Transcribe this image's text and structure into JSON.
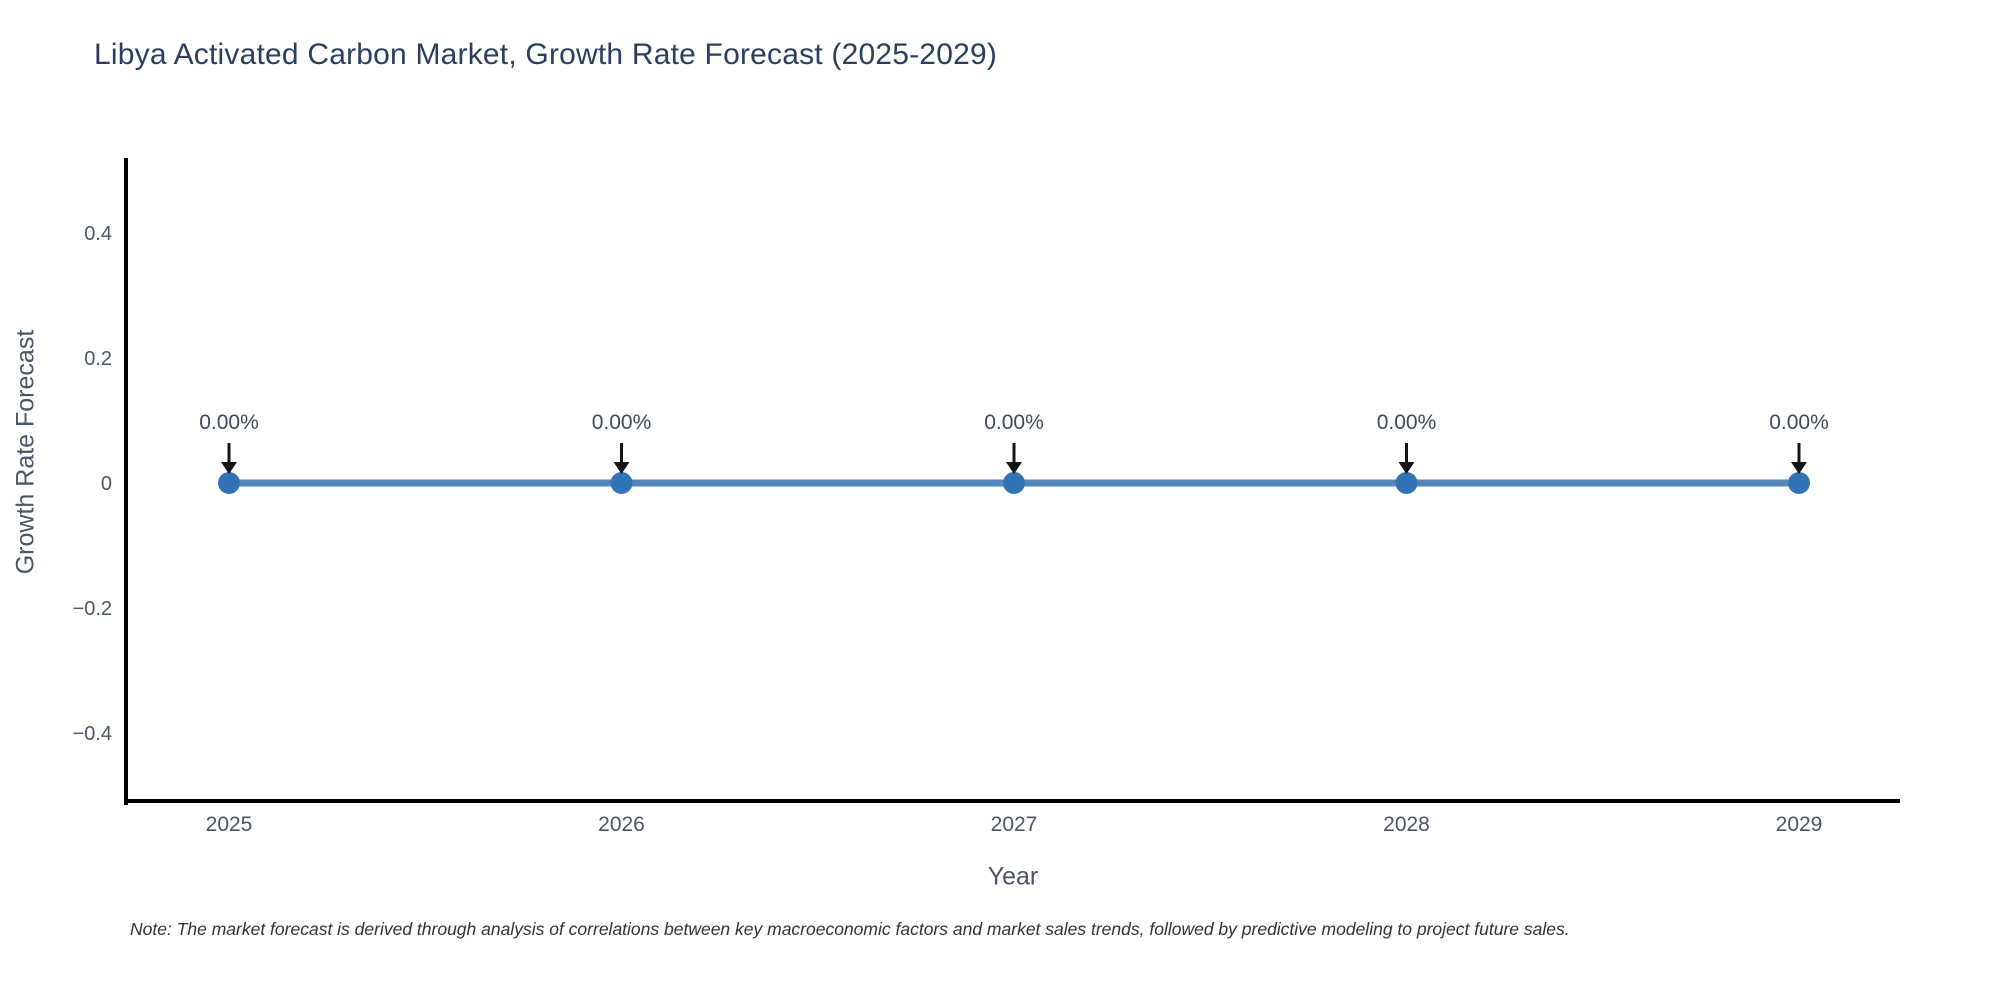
{
  "chart_data": {
    "type": "line",
    "title": "Libya Activated Carbon Market, Growth Rate Forecast (2025-2029)",
    "xlabel": "Year",
    "ylabel": "Growth Rate Forecast",
    "x": [
      "2025",
      "2026",
      "2027",
      "2028",
      "2029"
    ],
    "series": [
      {
        "name": "Growth Rate Forecast",
        "values": [
          0,
          0,
          0,
          0,
          0
        ]
      }
    ],
    "point_annotations": [
      "0.00%",
      "0.00%",
      "0.00%",
      "0.00%",
      "0.00%"
    ],
    "yticks": [
      {
        "value": 0.4,
        "label": "0.4"
      },
      {
        "value": 0.2,
        "label": "0.2"
      },
      {
        "value": 0,
        "label": "0"
      },
      {
        "value": -0.2,
        "label": "−0.2"
      },
      {
        "value": -0.4,
        "label": "−0.4"
      }
    ],
    "ylim": [
      -0.52,
      0.52
    ],
    "grid": false,
    "legend": "none",
    "note": "Note: The market forecast is derived through analysis of correlations between key macroeconomic factors and market sales trends, followed by predictive modeling to project future sales.",
    "colors": {
      "line": "#5586b7",
      "marker": "#3074b6",
      "arrow": "#141414",
      "axis": "#000000",
      "title_text": "#2a3f5f",
      "axis_title_text": "#4a5568",
      "tick_text": "#4a5568",
      "annotation_text": "#3d4a5c",
      "note_text": "#333333"
    }
  }
}
